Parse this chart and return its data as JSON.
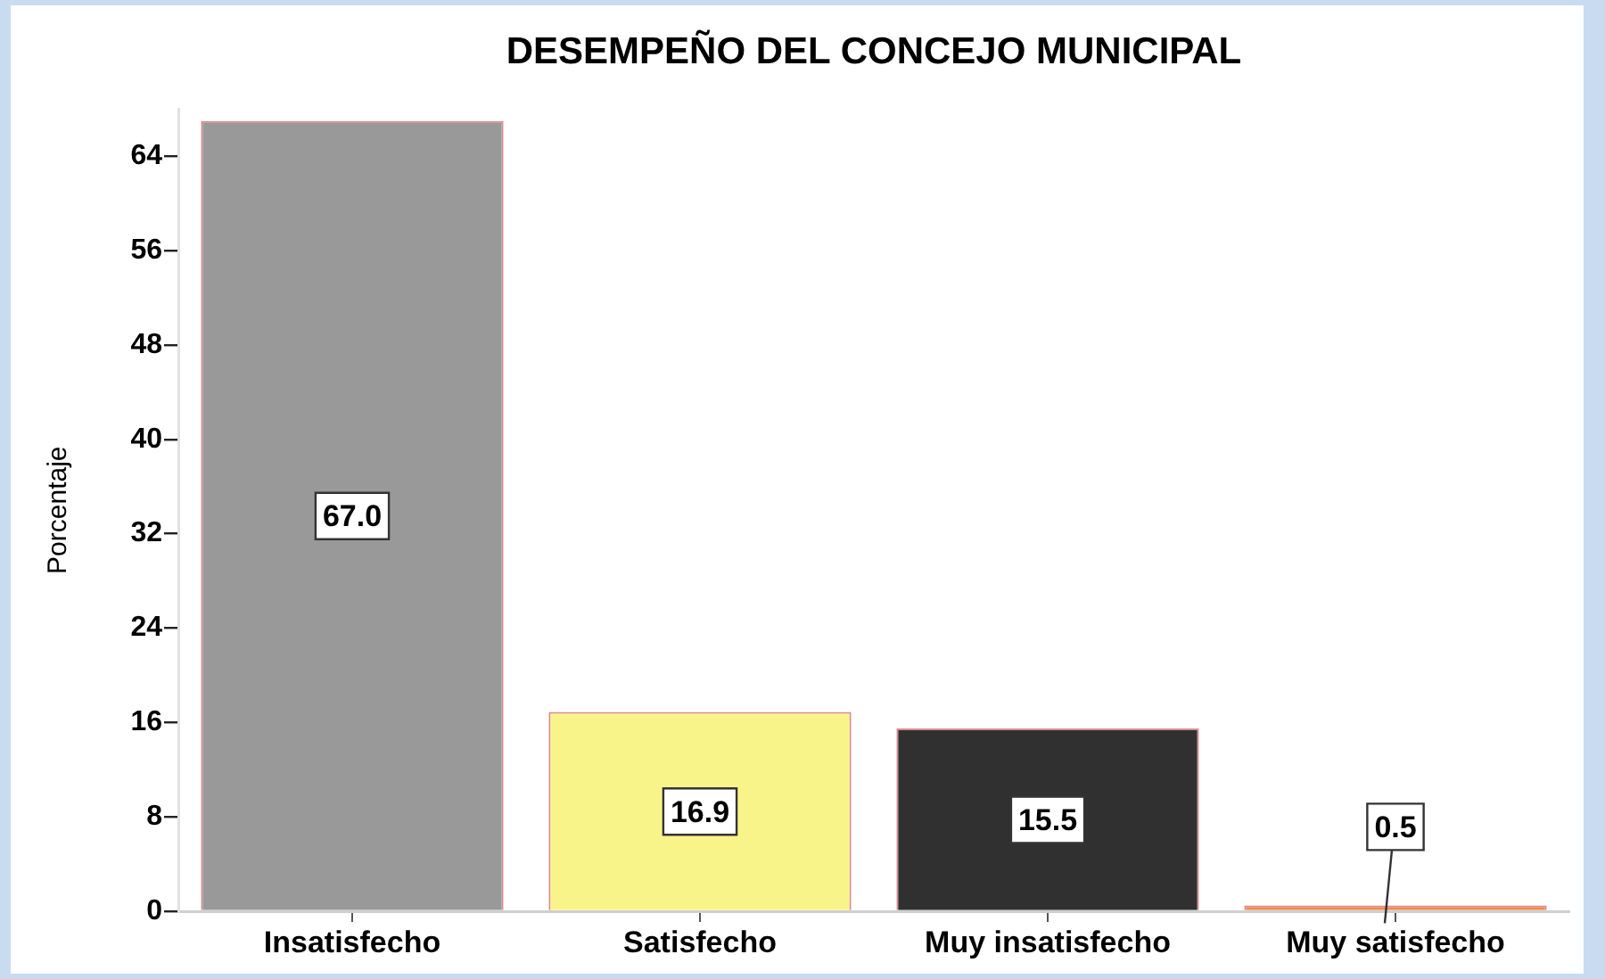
{
  "chart_data": {
    "type": "bar",
    "title": "DESEMPEÑO DEL CONCEJO MUNICIPAL",
    "ylabel": "Porcentaje",
    "categories": [
      "Insatisfecho",
      "Satisfecho",
      "Muy insatisfecho",
      "Muy satisfecho"
    ],
    "values": [
      67.0,
      16.9,
      15.5,
      0.5
    ],
    "value_labels": [
      "67.0",
      "16.9",
      "15.5",
      "0.5"
    ],
    "colors": [
      "#999999",
      "#f8f48a",
      "#303030",
      "#f0884a"
    ],
    "ylim": [
      0,
      68
    ],
    "yticks": [
      0,
      8,
      16,
      24,
      32,
      40,
      48,
      56,
      64
    ],
    "grid": false,
    "legend": false
  }
}
